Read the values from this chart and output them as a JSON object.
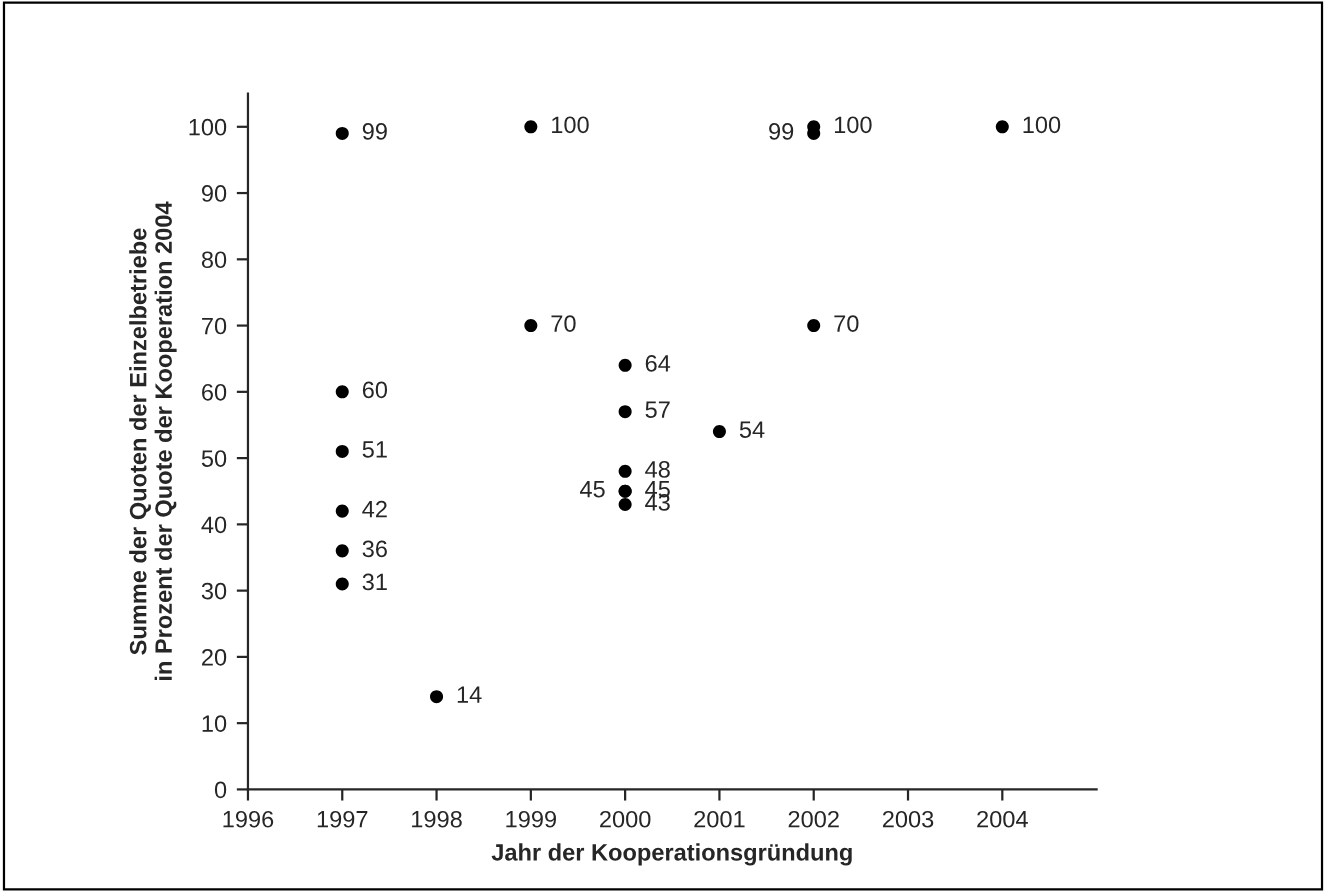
{
  "chart_data": {
    "type": "scatter",
    "xlabel": "Jahr der Kooperationsgründung",
    "ylabel": "Summe der Quoten der Einzelbetriebe\nin Prozent der Quote der Kooperation 2004",
    "series": [
      {
        "color": "#000000",
        "x": [
          1997,
          1997,
          1997,
          1997,
          1997,
          1997,
          1998,
          1999,
          1999,
          2000,
          2000,
          2000,
          2000,
          2000,
          2000,
          2001,
          2002,
          2002,
          2002,
          2004
        ],
        "values": [
          99,
          60,
          51,
          42,
          36,
          31,
          14,
          100,
          70,
          64,
          57,
          48,
          45,
          45,
          43,
          54,
          100,
          99,
          70,
          100
        ]
      }
    ],
    "data_labels": true,
    "marker": "circle",
    "xlim": [
      1996,
      2005
    ],
    "xticks": [
      1996,
      1997,
      1998,
      1999,
      2000,
      2001,
      2002,
      2003,
      2004
    ],
    "ylim": [
      0,
      105
    ],
    "yticks": [
      0,
      10,
      20,
      30,
      40,
      50,
      60,
      70,
      80,
      90,
      100
    ],
    "grid": false
  }
}
